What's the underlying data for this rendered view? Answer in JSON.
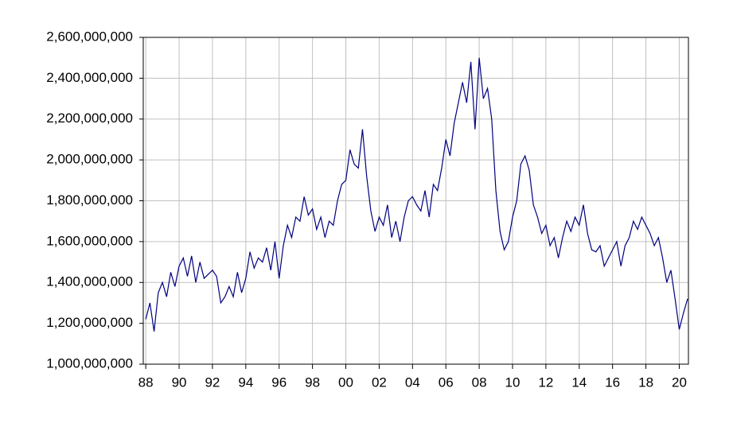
{
  "chart_data": {
    "type": "line",
    "color": "#000080",
    "grid": true,
    "xlim": [
      1987.85,
      2020.55
    ],
    "xticks": [
      {
        "value": 1988,
        "label": "88"
      },
      {
        "value": 1990,
        "label": "90"
      },
      {
        "value": 1992,
        "label": "92"
      },
      {
        "value": 1994,
        "label": "94"
      },
      {
        "value": 1996,
        "label": "96"
      },
      {
        "value": 1998,
        "label": "98"
      },
      {
        "value": 2000,
        "label": "00"
      },
      {
        "value": 2002,
        "label": "02"
      },
      {
        "value": 2004,
        "label": "04"
      },
      {
        "value": 2006,
        "label": "06"
      },
      {
        "value": 2008,
        "label": "08"
      },
      {
        "value": 2010,
        "label": "10"
      },
      {
        "value": 2012,
        "label": "12"
      },
      {
        "value": 2014,
        "label": "14"
      },
      {
        "value": 2016,
        "label": "16"
      },
      {
        "value": 2018,
        "label": "18"
      },
      {
        "value": 2020,
        "label": "20"
      }
    ],
    "ylim": [
      1000000000,
      2600000000
    ],
    "yticks": [
      {
        "value": 1000000000,
        "label": "1,000,000,000"
      },
      {
        "value": 1200000000,
        "label": "1,200,000,000"
      },
      {
        "value": 1400000000,
        "label": "1,400,000,000"
      },
      {
        "value": 1600000000,
        "label": "1,600,000,000"
      },
      {
        "value": 1800000000,
        "label": "1,800,000,000"
      },
      {
        "value": 2000000000,
        "label": "2,000,000,000"
      },
      {
        "value": 2200000000,
        "label": "2,200,000,000"
      },
      {
        "value": 2400000000,
        "label": "2,400,000,000"
      },
      {
        "value": 2600000000,
        "label": "2,600,000,000"
      }
    ],
    "x": [
      1988,
      1988.25,
      1988.5,
      1988.75,
      1989,
      1989.25,
      1989.5,
      1989.75,
      1990,
      1990.25,
      1990.5,
      1990.75,
      1991,
      1991.25,
      1991.5,
      1991.75,
      1992,
      1992.25,
      1992.5,
      1992.75,
      1993,
      1993.25,
      1993.5,
      1993.75,
      1994,
      1994.25,
      1994.5,
      1994.75,
      1995,
      1995.25,
      1995.5,
      1995.75,
      1996,
      1996.25,
      1996.5,
      1996.75,
      1997,
      1997.25,
      1997.5,
      1997.75,
      1998,
      1998.25,
      1998.5,
      1998.75,
      1999,
      1999.25,
      1999.5,
      1999.75,
      2000,
      2000.25,
      2000.5,
      2000.75,
      2001,
      2001.25,
      2001.5,
      2001.75,
      2002,
      2002.25,
      2002.5,
      2002.75,
      2003,
      2003.25,
      2003.5,
      2003.75,
      2004,
      2004.25,
      2004.5,
      2004.75,
      2005,
      2005.25,
      2005.5,
      2005.75,
      2006,
      2006.25,
      2006.5,
      2006.75,
      2007,
      2007.25,
      2007.5,
      2007.75,
      2008,
      2008.25,
      2008.5,
      2008.75,
      2009,
      2009.25,
      2009.5,
      2009.75,
      2010,
      2010.25,
      2010.5,
      2010.75,
      2011,
      2011.25,
      2011.5,
      2011.75,
      2012,
      2012.25,
      2012.5,
      2012.75,
      2013,
      2013.25,
      2013.5,
      2013.75,
      2014,
      2014.25,
      2014.5,
      2014.75,
      2015,
      2015.25,
      2015.5,
      2015.75,
      2016,
      2016.25,
      2016.5,
      2016.75,
      2017,
      2017.25,
      2017.5,
      2017.75,
      2018,
      2018.25,
      2018.5,
      2018.75,
      2019,
      2019.25,
      2019.5,
      2019.75,
      2020,
      2020.25,
      2020.5
    ],
    "values": [
      1220000000,
      1300000000,
      1160000000,
      1350000000,
      1400000000,
      1330000000,
      1450000000,
      1380000000,
      1480000000,
      1520000000,
      1430000000,
      1530000000,
      1400000000,
      1500000000,
      1420000000,
      1440000000,
      1460000000,
      1430000000,
      1300000000,
      1330000000,
      1380000000,
      1330000000,
      1450000000,
      1350000000,
      1420000000,
      1550000000,
      1470000000,
      1520000000,
      1500000000,
      1570000000,
      1460000000,
      1600000000,
      1420000000,
      1580000000,
      1680000000,
      1620000000,
      1720000000,
      1700000000,
      1820000000,
      1730000000,
      1760000000,
      1660000000,
      1720000000,
      1620000000,
      1700000000,
      1680000000,
      1800000000,
      1880000000,
      1900000000,
      2050000000,
      1980000000,
      1960000000,
      2150000000,
      1920000000,
      1750000000,
      1650000000,
      1720000000,
      1680000000,
      1780000000,
      1620000000,
      1700000000,
      1600000000,
      1720000000,
      1800000000,
      1820000000,
      1780000000,
      1750000000,
      1850000000,
      1720000000,
      1880000000,
      1850000000,
      1960000000,
      2100000000,
      2020000000,
      2180000000,
      2280000000,
      2380000000,
      2280000000,
      2480000000,
      2150000000,
      2500000000,
      2300000000,
      2350000000,
      2200000000,
      1850000000,
      1650000000,
      1560000000,
      1600000000,
      1720000000,
      1800000000,
      1980000000,
      2020000000,
      1950000000,
      1780000000,
      1720000000,
      1640000000,
      1680000000,
      1580000000,
      1620000000,
      1520000000,
      1620000000,
      1700000000,
      1650000000,
      1720000000,
      1680000000,
      1780000000,
      1640000000,
      1560000000,
      1550000000,
      1580000000,
      1480000000,
      1520000000,
      1560000000,
      1600000000,
      1480000000,
      1580000000,
      1620000000,
      1700000000,
      1660000000,
      1720000000,
      1680000000,
      1640000000,
      1580000000,
      1620000000,
      1520000000,
      1400000000,
      1460000000,
      1320000000,
      1170000000,
      1250000000,
      1320000000
    ]
  }
}
